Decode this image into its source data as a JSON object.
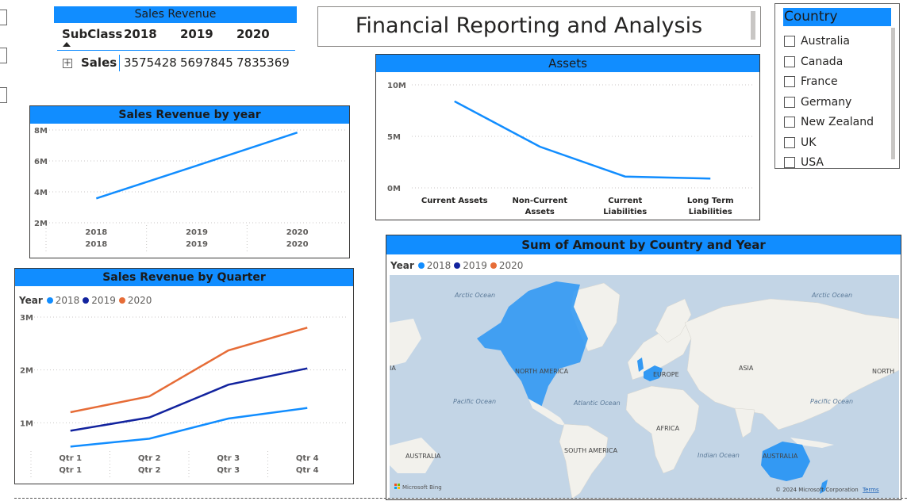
{
  "matrix": {
    "title": "Sales Revenue",
    "headers": [
      "SubClass",
      "2018",
      "2019",
      "2020"
    ],
    "row": {
      "label": "Sales",
      "values": [
        "3575428",
        "5697845",
        "7835369"
      ]
    }
  },
  "header": {
    "title": "Financial Reporting and Analysis"
  },
  "slicer": {
    "title": "Country",
    "items": [
      "Australia",
      "Canada",
      "France",
      "Germany",
      "New Zealand",
      "UK",
      "USA"
    ]
  },
  "colors": {
    "accent": "#118DFF",
    "s2018": "#118DFF",
    "s2019": "#12239E",
    "s2020": "#E66C37",
    "land": "#f2f1ec",
    "sea": "#c3d5e6",
    "highlight": "#3399f3"
  },
  "chart_data": [
    {
      "id": "yearly",
      "type": "line",
      "title": "Sales Revenue by year",
      "categories": [
        "2018",
        "2019",
        "2020"
      ],
      "sub_categories": [
        "2018",
        "2019",
        "2020"
      ],
      "values": [
        3575428,
        5697845,
        7835369
      ],
      "y_ticks": [
        "8M",
        "6M",
        "4M",
        "2M"
      ],
      "ylim": [
        2000000,
        8000000
      ]
    },
    {
      "id": "assets",
      "type": "line",
      "title": "Assets",
      "categories": [
        "Current Assets",
        "Non-Current Assets",
        "Current Liabilities",
        "Long Term Liabilities"
      ],
      "values": [
        8400000,
        4000000,
        1100000,
        900000
      ],
      "y_ticks": [
        "10M",
        "5M",
        "0M"
      ],
      "ylim": [
        0,
        10000000
      ]
    },
    {
      "id": "quarterly",
      "type": "line",
      "title": "Sales Revenue by Quarter",
      "legend_title": "Year",
      "categories": [
        "Qtr 1",
        "Qtr 2",
        "Qtr 3",
        "Qtr 4"
      ],
      "sub_categories": [
        "Qtr 1",
        "Qtr 2",
        "Qtr 3",
        "Qtr 4"
      ],
      "y_ticks": [
        "3M",
        "2M",
        "1M"
      ],
      "ylim": [
        0,
        3000000
      ],
      "series": [
        {
          "name": "2018",
          "values": [
            550000,
            700000,
            1080000,
            1280000
          ]
        },
        {
          "name": "2019",
          "values": [
            850000,
            1100000,
            1720000,
            2030000
          ]
        },
        {
          "name": "2020",
          "values": [
            1200000,
            1500000,
            2370000,
            2800000
          ]
        }
      ]
    },
    {
      "id": "map",
      "type": "map",
      "title": "Sum of Amount by Country and Year",
      "legend_title": "Year",
      "series": [
        {
          "name": "2018"
        },
        {
          "name": "2019"
        },
        {
          "name": "2020"
        }
      ],
      "labels": {
        "arctic_l": "Arctic Ocean",
        "arctic_r": "Arctic Ocean",
        "ia": "IA",
        "north_america": "NORTH AMERICA",
        "europe": "EUROPE",
        "asia": "ASIA",
        "north": "NORTH",
        "pacific_l": "Pacific Ocean",
        "atlantic": "Atlantic Ocean",
        "pacific_r": "Pacific Ocean",
        "africa": "AFRICA",
        "australia_l": "AUSTRALIA",
        "south_america": "SOUTH AMERICA",
        "indian": "Indian Ocean",
        "australia_r": "AUSTRALIA"
      },
      "bing": "Microsoft Bing",
      "copyright": "© 2024 Microsoft Corporation",
      "terms": "Terms"
    }
  ]
}
